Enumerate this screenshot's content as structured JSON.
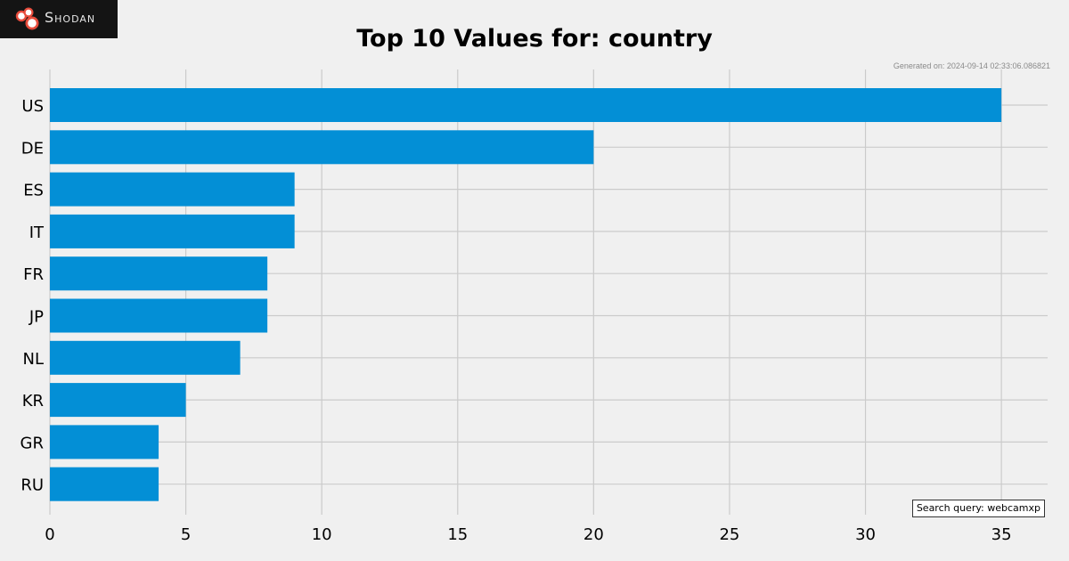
{
  "brand": {
    "name": "Shodan"
  },
  "meta": {
    "generated": "Generated on: 2024-09-14 02:33:06.086821",
    "query": "Search query: webcamxp"
  },
  "colors": {
    "bar": "#038fd6",
    "grid": "#cbcbcb",
    "background": "#f0f0f0"
  },
  "chart_data": {
    "type": "bar",
    "orientation": "horizontal",
    "title": "Top 10 Values for: country",
    "categories": [
      "US",
      "DE",
      "ES",
      "IT",
      "FR",
      "JP",
      "NL",
      "KR",
      "GR",
      "RU"
    ],
    "values": [
      35,
      20,
      9,
      9,
      8,
      8,
      7,
      5,
      4,
      4
    ],
    "xlabel": "",
    "ylabel": "",
    "xlim": [
      0,
      36.7
    ],
    "xticks": [
      0,
      5,
      10,
      15,
      20,
      25,
      30,
      35
    ],
    "grid": true
  }
}
